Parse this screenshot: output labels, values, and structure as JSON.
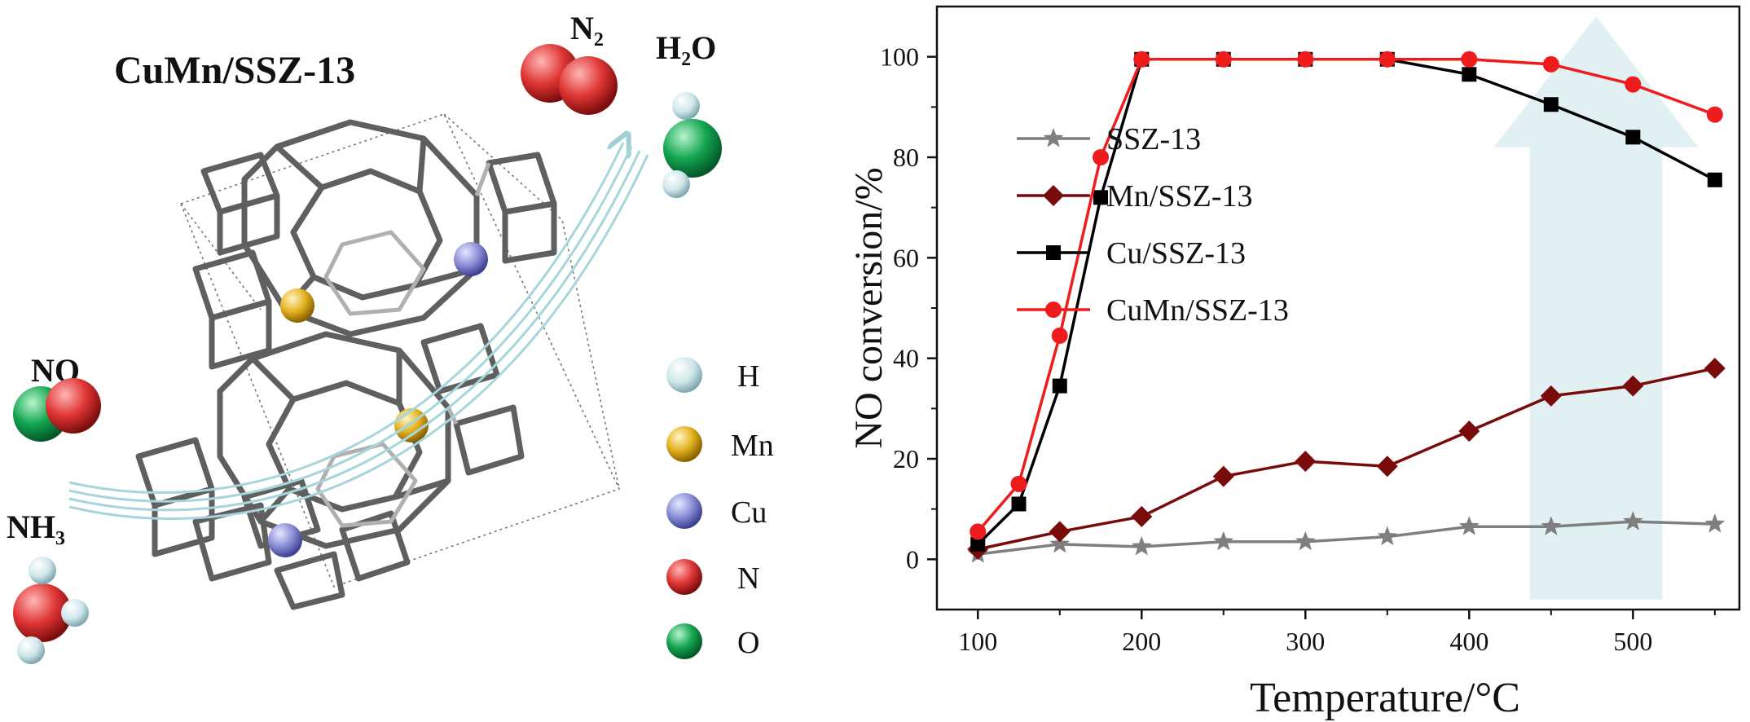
{
  "scheme": {
    "title": "CuMn/SSZ-13",
    "molecules": {
      "n2": "N₂",
      "h2o": "H₂O",
      "no": "NO",
      "nh3": "NH₃"
    },
    "legend": [
      {
        "label": "H",
        "color": "#cfe6ea"
      },
      {
        "label": "Mn",
        "color": "#e3b21f"
      },
      {
        "label": "Cu",
        "color": "#8a8fd6"
      },
      {
        "label": "N",
        "color": "#e03535"
      },
      {
        "label": "O",
        "color": "#13a551"
      }
    ],
    "arrow_color": "#b7dde2",
    "framework_color": "#5a5a5a"
  },
  "chart_data": {
    "type": "line",
    "xlabel": "Temperature/°C",
    "ylabel": "NO conversion/%",
    "xlim": [
      75,
      565
    ],
    "ylim": [
      -10,
      110
    ],
    "xticks": [
      100,
      200,
      300,
      400,
      500
    ],
    "yticks": [
      0,
      20,
      40,
      60,
      80,
      100
    ],
    "legend_position": "center-left",
    "arrow_color": "#dcedf0",
    "series": [
      {
        "name": "SSZ-13",
        "color": "#7f7f7f",
        "marker": "star",
        "x": [
          100,
          150,
          200,
          250,
          300,
          350,
          400,
          450,
          500,
          550
        ],
        "y": [
          1,
          3,
          2.5,
          3.5,
          3.5,
          4.5,
          6.5,
          6.5,
          7.5,
          7
        ]
      },
      {
        "name": "Mn/SSZ-13",
        "color": "#7a0b0b",
        "marker": "diamond",
        "x": [
          100,
          150,
          200,
          250,
          300,
          350,
          400,
          450,
          500,
          550
        ],
        "y": [
          2,
          5.5,
          8.5,
          16.5,
          19.5,
          18.5,
          25.5,
          32.5,
          34.5,
          38
        ]
      },
      {
        "name": "Cu/SSZ-13",
        "color": "#000000",
        "marker": "square",
        "x": [
          100,
          125,
          150,
          175,
          200,
          250,
          300,
          350,
          400,
          450,
          500,
          550
        ],
        "y": [
          3,
          11,
          34.5,
          72,
          99.5,
          99.5,
          99.5,
          99.5,
          96.5,
          90.5,
          84,
          75.5
        ]
      },
      {
        "name": "CuMn/SSZ-13",
        "color": "#ee1c1c",
        "marker": "circle",
        "x": [
          100,
          125,
          150,
          175,
          200,
          250,
          300,
          350,
          400,
          450,
          500,
          550
        ],
        "y": [
          5.5,
          15,
          44.5,
          80,
          99.5,
          99.5,
          99.5,
          99.5,
          99.5,
          98.5,
          94.5,
          88.5
        ]
      }
    ]
  }
}
